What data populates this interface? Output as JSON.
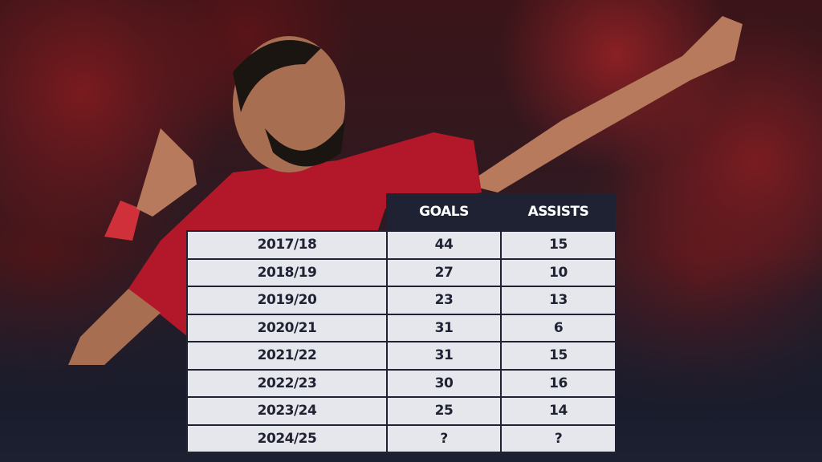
{
  "table": {
    "header": [
      "GOALS",
      "ASSISTS"
    ],
    "rows": [
      [
        "2017/18",
        44,
        15
      ],
      [
        "2018/19",
        27,
        10
      ],
      [
        "2019/20",
        23,
        13
      ],
      [
        "2020/21",
        31,
        6
      ],
      [
        "2021/22",
        31,
        15
      ],
      [
        "2022/23",
        30,
        16
      ],
      [
        "2023/24",
        25,
        14
      ],
      [
        "2024/25",
        "?",
        "?"
      ]
    ]
  }
}
